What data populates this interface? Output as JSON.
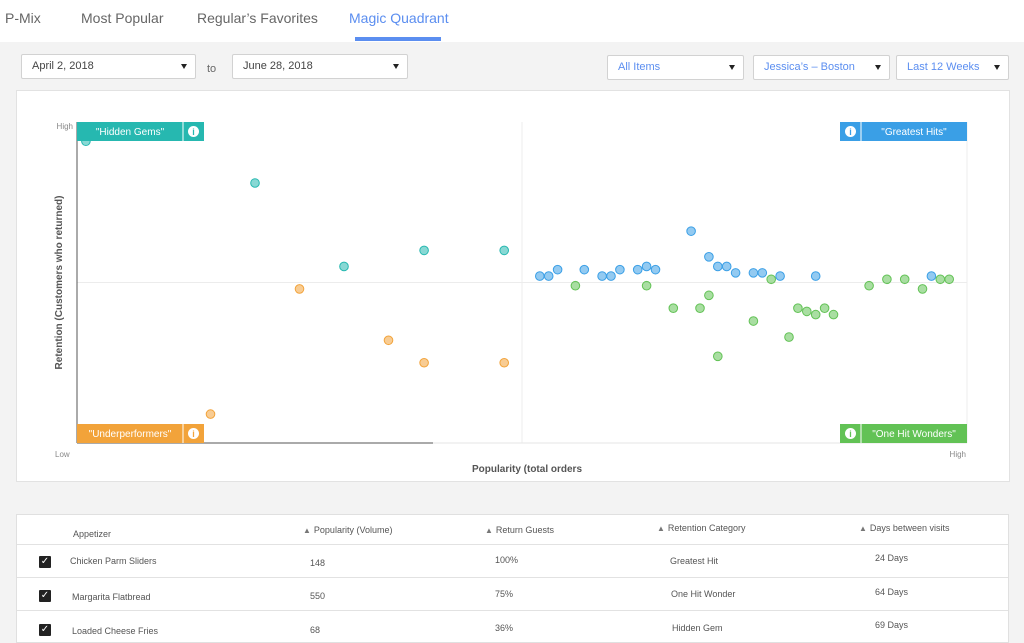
{
  "tabs": [
    {
      "label": "P-Mix",
      "active": false
    },
    {
      "label": "Most Popular",
      "active": false
    },
    {
      "label": "Regular’s Favorites",
      "active": false
    },
    {
      "label": "Magic Quadrant",
      "active": true
    }
  ],
  "filters": {
    "start_date": "April 2, 2018",
    "to_label": "to",
    "end_date": "June 28, 2018",
    "items": "All Items",
    "location": "Jessica’s – Boston",
    "period": "Last 12 Weeks"
  },
  "colors": {
    "accent": "#5b8ef0",
    "hidden_gems": "#26b8b0",
    "greatest_hits": "#3a9fe6",
    "underperformers": "#f2a33a",
    "one_hit_wonders": "#62c255"
  },
  "chart_data": {
    "type": "scatter",
    "xlabel": "Popularity (total orders",
    "ylabel": "Retention (Customers who returned)",
    "x_range": [
      0,
      1
    ],
    "y_range": [
      0,
      1
    ],
    "axis_tick_labels": {
      "y_high": "High",
      "x_low": "Low",
      "x_high": "High"
    },
    "quadrants": [
      {
        "key": "hidden_gems",
        "label": "\"Hidden Gems\"",
        "corner": "top-left",
        "icon": "info-icon"
      },
      {
        "key": "greatest_hits",
        "label": "\"Greatest Hits\"",
        "corner": "top-right",
        "icon": "info-icon"
      },
      {
        "key": "underperformers",
        "label": "\"Underperformers\"",
        "corner": "bottom-left",
        "icon": "info-icon"
      },
      {
        "key": "one_hit_wonders",
        "label": "\"One Hit Wonders\"",
        "corner": "bottom-right",
        "icon": "info-icon"
      }
    ],
    "series": [
      {
        "key": "hidden_gems",
        "points": [
          [
            0.01,
            0.94
          ],
          [
            0.2,
            0.81
          ],
          [
            0.3,
            0.55
          ],
          [
            0.39,
            0.6
          ],
          [
            0.48,
            0.6
          ]
        ]
      },
      {
        "key": "underperformers",
        "points": [
          [
            0.25,
            0.48
          ],
          [
            0.35,
            0.32
          ],
          [
            0.39,
            0.25
          ],
          [
            0.48,
            0.25
          ],
          [
            0.15,
            0.09
          ]
        ]
      },
      {
        "key": "greatest_hits",
        "points": [
          [
            0.52,
            0.52
          ],
          [
            0.53,
            0.52
          ],
          [
            0.54,
            0.54
          ],
          [
            0.57,
            0.54
          ],
          [
            0.59,
            0.52
          ],
          [
            0.6,
            0.52
          ],
          [
            0.61,
            0.54
          ],
          [
            0.63,
            0.54
          ],
          [
            0.64,
            0.55
          ],
          [
            0.65,
            0.54
          ],
          [
            0.69,
            0.66
          ],
          [
            0.71,
            0.58
          ],
          [
            0.72,
            0.55
          ],
          [
            0.73,
            0.55
          ],
          [
            0.74,
            0.53
          ],
          [
            0.76,
            0.53
          ],
          [
            0.77,
            0.53
          ],
          [
            0.79,
            0.52
          ],
          [
            0.83,
            0.52
          ],
          [
            0.96,
            0.52
          ]
        ]
      },
      {
        "key": "one_hit_wonders",
        "points": [
          [
            0.56,
            0.49
          ],
          [
            0.64,
            0.49
          ],
          [
            0.67,
            0.42
          ],
          [
            0.7,
            0.42
          ],
          [
            0.71,
            0.46
          ],
          [
            0.72,
            0.27
          ],
          [
            0.76,
            0.38
          ],
          [
            0.78,
            0.51
          ],
          [
            0.8,
            0.33
          ],
          [
            0.81,
            0.42
          ],
          [
            0.82,
            0.41
          ],
          [
            0.83,
            0.4
          ],
          [
            0.84,
            0.42
          ],
          [
            0.85,
            0.4
          ],
          [
            0.89,
            0.49
          ],
          [
            0.91,
            0.51
          ],
          [
            0.93,
            0.51
          ],
          [
            0.95,
            0.48
          ],
          [
            0.97,
            0.51
          ],
          [
            0.98,
            0.51
          ]
        ]
      }
    ]
  },
  "table": {
    "columns": [
      {
        "label": "Appetizer",
        "sortable": false
      },
      {
        "label": "Popularity (Volume)",
        "sortable": true
      },
      {
        "label": "Return Guests",
        "sortable": true
      },
      {
        "label": "Retention Category",
        "sortable": true
      },
      {
        "label": "Days between visits",
        "sortable": true
      }
    ],
    "rows": [
      {
        "checked": true,
        "name": "Chicken Parm Sliders",
        "popularity": "148",
        "return_guests": "100%",
        "category": "Greatest Hit",
        "days": "24 Days"
      },
      {
        "checked": true,
        "name": "Margarita Flatbread",
        "popularity": "550",
        "return_guests": "75%",
        "category": "One Hit Wonder",
        "days": "64 Days"
      },
      {
        "checked": true,
        "name": "Loaded Cheese Fries",
        "popularity": "68",
        "return_guests": "36%",
        "category": "Hidden Gem",
        "days": "69 Days"
      }
    ]
  }
}
